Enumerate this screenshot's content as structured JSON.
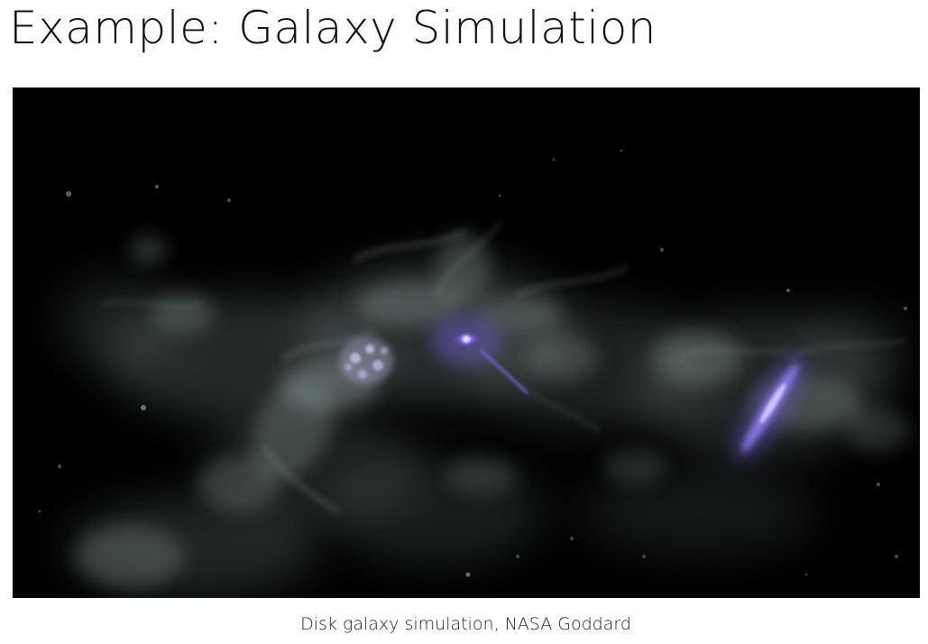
{
  "page": {
    "title": "Example: Galaxy Simulation",
    "caption": "Disk galaxy simulation, NASA Goddard"
  },
  "media": {
    "kind": "video-frame",
    "background_color": "#000000",
    "gas_color": "#8a9e9b",
    "galaxy_core_color": "#8c6dff"
  }
}
